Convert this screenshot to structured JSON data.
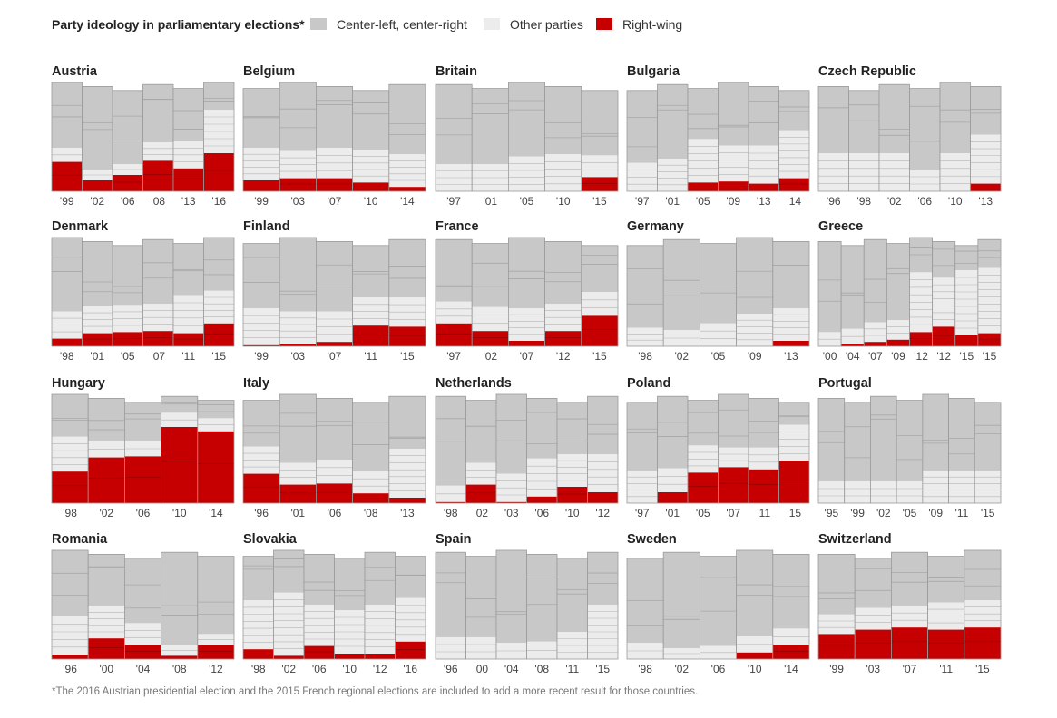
{
  "legend": {
    "title": "Party ideology in parliamentary elections*",
    "items": [
      {
        "label": "Center-left, center-right",
        "color": "#c8c8c8"
      },
      {
        "label": "Other parties",
        "color": "#ececec"
      },
      {
        "label": "Right-wing",
        "color": "#c60000"
      }
    ]
  },
  "footnote": "*The 2016 Austrian presidential election and the 2015 French regional elections are included to add a more recent result for those countries.",
  "colors": {
    "center": "#c8c8c8",
    "other": "#ececec",
    "right": "#c60000",
    "outline": "#9a9a9a",
    "divider": "#ffffff"
  },
  "chart_data": [
    {
      "type": "bar",
      "title": "Austria",
      "categories": [
        "'99",
        "'02",
        "'06",
        "'08",
        "'13",
        "'16"
      ],
      "series": [
        {
          "name": "Right-wing",
          "values": [
            27,
            10,
            15,
            28,
            21,
            35
          ]
        },
        {
          "name": "Other parties",
          "values": [
            13,
            10,
            10,
            17,
            25,
            40
          ]
        },
        {
          "name": "Center-left, center-right",
          "values": [
            60,
            80,
            75,
            55,
            54,
            25
          ]
        }
      ]
    },
    {
      "type": "bar",
      "title": "Belgium",
      "categories": [
        "'99",
        "'03",
        "'07",
        "'10",
        "'14"
      ],
      "series": [
        {
          "name": "Right-wing",
          "values": [
            10,
            12,
            12,
            8,
            4
          ]
        },
        {
          "name": "Other parties",
          "values": [
            30,
            25,
            28,
            30,
            30
          ]
        },
        {
          "name": "Center-left, center-right",
          "values": [
            60,
            63,
            60,
            62,
            66
          ]
        }
      ]
    },
    {
      "type": "bar",
      "title": "Britain",
      "categories": [
        "'97",
        "'01",
        "'05",
        "'10",
        "'15"
      ],
      "series": [
        {
          "name": "Right-wing",
          "values": [
            0,
            0,
            0,
            0,
            13
          ]
        },
        {
          "name": "Other parties",
          "values": [
            25,
            25,
            32,
            34,
            20
          ]
        },
        {
          "name": "Center-left, center-right",
          "values": [
            75,
            75,
            68,
            66,
            67
          ]
        }
      ]
    },
    {
      "type": "bar",
      "title": "Bulgaria",
      "categories": [
        "'97",
        "'01",
        "'05",
        "'09",
        "'13",
        "'14"
      ],
      "series": [
        {
          "name": "Right-wing",
          "values": [
            0,
            0,
            8,
            9,
            7,
            12
          ]
        },
        {
          "name": "Other parties",
          "values": [
            26,
            30,
            40,
            33,
            35,
            44
          ]
        },
        {
          "name": "Center-left, center-right",
          "values": [
            74,
            70,
            52,
            58,
            58,
            44
          ]
        }
      ]
    },
    {
      "type": "bar",
      "title": "Czech Republic",
      "categories": [
        "'96",
        "'98",
        "'02",
        "'06",
        "'10",
        "'13"
      ],
      "series": [
        {
          "name": "Right-wing",
          "values": [
            0,
            0,
            0,
            0,
            0,
            7
          ]
        },
        {
          "name": "Other parties",
          "values": [
            35,
            35,
            35,
            20,
            35,
            45
          ]
        },
        {
          "name": "Center-left, center-right",
          "values": [
            65,
            65,
            65,
            80,
            65,
            48
          ]
        }
      ]
    },
    {
      "type": "bar",
      "title": "Denmark",
      "categories": [
        "'98",
        "'01",
        "'05",
        "'07",
        "'11",
        "'15"
      ],
      "series": [
        {
          "name": "Right-wing",
          "values": [
            7,
            12,
            13,
            14,
            12,
            21
          ]
        },
        {
          "name": "Other parties",
          "values": [
            25,
            25,
            25,
            25,
            35,
            30
          ]
        },
        {
          "name": "Center-left, center-right",
          "values": [
            68,
            63,
            62,
            61,
            53,
            49
          ]
        }
      ]
    },
    {
      "type": "bar",
      "title": "Finland",
      "categories": [
        "'99",
        "'03",
        "'07",
        "'11",
        "'15"
      ],
      "series": [
        {
          "name": "Right-wing",
          "values": [
            1,
            2,
            4,
            19,
            18
          ]
        },
        {
          "name": "Other parties",
          "values": [
            34,
            30,
            28,
            26,
            27
          ]
        },
        {
          "name": "Center-left, center-right",
          "values": [
            65,
            68,
            68,
            55,
            55
          ]
        }
      ]
    },
    {
      "type": "bar",
      "title": "France",
      "categories": [
        "'97",
        "'02",
        "'07",
        "'12",
        "'15"
      ],
      "series": [
        {
          "name": "Right-wing",
          "values": [
            21,
            14,
            5,
            14,
            28
          ]
        },
        {
          "name": "Other parties",
          "values": [
            20,
            22,
            30,
            25,
            22
          ]
        },
        {
          "name": "Center-left, center-right",
          "values": [
            59,
            64,
            65,
            61,
            50
          ]
        }
      ]
    },
    {
      "type": "bar",
      "title": "Germany",
      "categories": [
        "'98",
        "'02",
        "'05",
        "'09",
        "'13"
      ],
      "series": [
        {
          "name": "Right-wing",
          "values": [
            0,
            0,
            0,
            0,
            5
          ]
        },
        {
          "name": "Other parties",
          "values": [
            17,
            15,
            21,
            30,
            30
          ]
        },
        {
          "name": "Center-left, center-right",
          "values": [
            83,
            85,
            79,
            70,
            65
          ]
        }
      ]
    },
    {
      "type": "bar",
      "title": "Greece",
      "categories": [
        "'00",
        "'04",
        "'07",
        "'09",
        "'12",
        "'12",
        "'15",
        "'15"
      ],
      "series": [
        {
          "name": "Right-wing",
          "values": [
            0,
            2,
            4,
            6,
            13,
            18,
            10,
            12
          ]
        },
        {
          "name": "Other parties",
          "values": [
            13,
            14,
            18,
            18,
            55,
            45,
            60,
            60
          ]
        },
        {
          "name": "Center-left, center-right",
          "values": [
            87,
            84,
            78,
            76,
            32,
            37,
            30,
            28
          ]
        }
      ]
    },
    {
      "type": "bar",
      "title": "Hungary",
      "categories": [
        "'98",
        "'02",
        "'06",
        "'10",
        "'14"
      ],
      "series": [
        {
          "name": "Right-wing",
          "values": [
            29,
            42,
            43,
            70,
            66
          ]
        },
        {
          "name": "Other parties",
          "values": [
            32,
            15,
            14,
            13,
            12
          ]
        },
        {
          "name": "Center-left, center-right",
          "values": [
            39,
            43,
            43,
            17,
            22
          ]
        }
      ]
    },
    {
      "type": "bar",
      "title": "Italy",
      "categories": [
        "'96",
        "'01",
        "'06",
        "'08",
        "'13"
      ],
      "series": [
        {
          "name": "Right-wing",
          "values": [
            27,
            17,
            18,
            9,
            5
          ]
        },
        {
          "name": "Other parties",
          "values": [
            25,
            20,
            22,
            20,
            45
          ]
        },
        {
          "name": "Center-left, center-right",
          "values": [
            48,
            63,
            60,
            71,
            50
          ]
        }
      ]
    },
    {
      "type": "bar",
      "title": "Netherlands",
      "categories": [
        "'98",
        "'02",
        "'03",
        "'06",
        "'10",
        "'12"
      ],
      "series": [
        {
          "name": "Right-wing",
          "values": [
            1,
            17,
            1,
            6,
            15,
            10
          ]
        },
        {
          "name": "Other parties",
          "values": [
            15,
            20,
            26,
            35,
            30,
            35
          ]
        },
        {
          "name": "Center-left, center-right",
          "values": [
            84,
            63,
            73,
            59,
            55,
            55
          ]
        }
      ]
    },
    {
      "type": "bar",
      "title": "Poland",
      "categories": [
        "'97",
        "'01",
        "'05",
        "'07",
        "'11",
        "'15"
      ],
      "series": [
        {
          "name": "Right-wing",
          "values": [
            0,
            10,
            28,
            33,
            31,
            39
          ]
        },
        {
          "name": "Other parties",
          "values": [
            30,
            22,
            25,
            18,
            20,
            33
          ]
        },
        {
          "name": "Center-left, center-right",
          "values": [
            70,
            68,
            47,
            49,
            49,
            28
          ]
        }
      ]
    },
    {
      "type": "bar",
      "title": "Portugal",
      "categories": [
        "'95",
        "'99",
        "'02",
        "'05",
        "'09",
        "'11",
        "'15"
      ],
      "series": [
        {
          "name": "Right-wing",
          "values": [
            0,
            0,
            0,
            0,
            0,
            0,
            0
          ]
        },
        {
          "name": "Other parties",
          "values": [
            20,
            20,
            20,
            20,
            30,
            30,
            30
          ]
        },
        {
          "name": "Center-left, center-right",
          "values": [
            80,
            80,
            80,
            80,
            70,
            70,
            70
          ]
        }
      ]
    },
    {
      "type": "bar",
      "title": "Romania",
      "categories": [
        "'96",
        "'00",
        "'04",
        "'08",
        "'12"
      ],
      "series": [
        {
          "name": "Right-wing",
          "values": [
            4,
            19,
            13,
            3,
            13
          ]
        },
        {
          "name": "Other parties",
          "values": [
            35,
            30,
            20,
            10,
            10
          ]
        },
        {
          "name": "Center-left, center-right",
          "values": [
            61,
            51,
            67,
            87,
            77
          ]
        }
      ]
    },
    {
      "type": "bar",
      "title": "Slovakia",
      "categories": [
        "'98",
        "'02",
        "'06",
        "'10",
        "'12",
        "'16"
      ],
      "series": [
        {
          "name": "Right-wing",
          "values": [
            9,
            3,
            12,
            5,
            5,
            16
          ]
        },
        {
          "name": "Other parties",
          "values": [
            45,
            58,
            38,
            40,
            45,
            40
          ]
        },
        {
          "name": "Center-left, center-right",
          "values": [
            46,
            39,
            50,
            55,
            50,
            44
          ]
        }
      ]
    },
    {
      "type": "bar",
      "title": "Spain",
      "categories": [
        "'96",
        "'00",
        "'04",
        "'08",
        "'11",
        "'15"
      ],
      "series": [
        {
          "name": "Right-wing",
          "values": [
            0,
            0,
            0,
            0,
            0,
            0
          ]
        },
        {
          "name": "Other parties",
          "values": [
            20,
            20,
            15,
            16,
            25,
            50
          ]
        },
        {
          "name": "Center-left, center-right",
          "values": [
            80,
            80,
            85,
            84,
            75,
            50
          ]
        }
      ]
    },
    {
      "type": "bar",
      "title": "Sweden",
      "categories": [
        "'98",
        "'02",
        "'06",
        "'10",
        "'14"
      ],
      "series": [
        {
          "name": "Right-wing",
          "values": [
            0,
            0,
            0,
            6,
            13
          ]
        },
        {
          "name": "Other parties",
          "values": [
            15,
            10,
            12,
            15,
            15
          ]
        },
        {
          "name": "Center-left, center-right",
          "values": [
            85,
            90,
            88,
            79,
            72
          ]
        }
      ]
    },
    {
      "type": "bar",
      "title": "Switzerland",
      "categories": [
        "'99",
        "'03",
        "'07",
        "'11",
        "'15"
      ],
      "series": [
        {
          "name": "Right-wing",
          "values": [
            23,
            27,
            29,
            27,
            29
          ]
        },
        {
          "name": "Other parties",
          "values": [
            18,
            20,
            20,
            25,
            25
          ]
        },
        {
          "name": "Center-left, center-right",
          "values": [
            59,
            53,
            51,
            48,
            46
          ]
        }
      ]
    }
  ]
}
